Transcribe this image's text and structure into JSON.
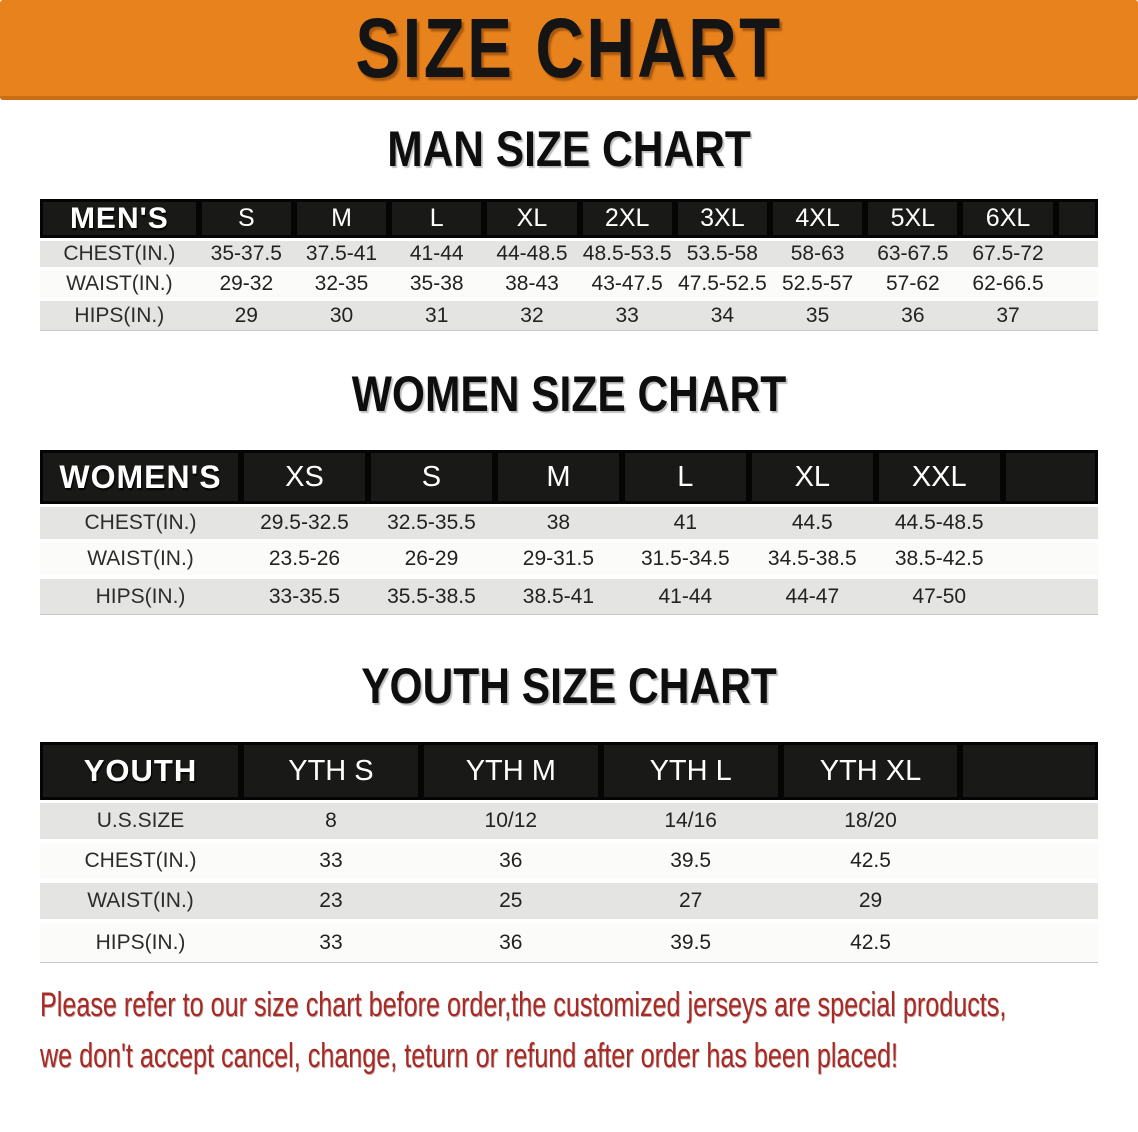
{
  "banner": {
    "title": "SIZE CHART",
    "bg_color": "#E8821C"
  },
  "colors": {
    "header_bar": "#191917",
    "stripe_gray": "#E4E4E2",
    "stripe_white": "#FBFBF9",
    "disclaimer_red": "#A82A24"
  },
  "sections": [
    {
      "title": "MAN SIZE CHART",
      "header_label": "MEN'S",
      "columns": [
        "S",
        "M",
        "L",
        "XL",
        "2XL",
        "3XL",
        "4XL",
        "5XL",
        "6XL"
      ],
      "rows": [
        {
          "label": "CHEST(IN.)",
          "values": [
            "35-37.5",
            "37.5-41",
            "41-44",
            "44-48.5",
            "48.5-53.5",
            "53.5-58",
            "58-63",
            "63-67.5",
            "67.5-72"
          ]
        },
        {
          "label": "WAIST(IN.)",
          "values": [
            "29-32",
            "32-35",
            "35-38",
            "38-43",
            "43-47.5",
            "47.5-52.5",
            "52.5-57",
            "57-62",
            "62-66.5"
          ]
        },
        {
          "label": "HIPS(IN.)",
          "values": [
            "29",
            "30",
            "31",
            "32",
            "33",
            "34",
            "35",
            "36",
            "37"
          ]
        }
      ]
    },
    {
      "title": "WOMEN SIZE CHART",
      "header_label": "WOMEN'S",
      "columns": [
        "XS",
        "S",
        "M",
        "L",
        "XL",
        "XXL"
      ],
      "rows": [
        {
          "label": "CHEST(IN.)",
          "values": [
            "29.5-32.5",
            "32.5-35.5",
            "38",
            "41",
            "44.5",
            "44.5-48.5"
          ]
        },
        {
          "label": "WAIST(IN.)",
          "values": [
            "23.5-26",
            "26-29",
            "29-31.5",
            "31.5-34.5",
            "34.5-38.5",
            "38.5-42.5"
          ]
        },
        {
          "label": "HIPS(IN.)",
          "values": [
            "33-35.5",
            "35.5-38.5",
            "38.5-41",
            "41-44",
            "44-47",
            "47-50"
          ]
        }
      ]
    },
    {
      "title": "YOUTH SIZE CHART",
      "header_label": "YOUTH",
      "columns": [
        "YTH S",
        "YTH M",
        "YTH L",
        "YTH XL"
      ],
      "rows": [
        {
          "label": "U.S.SIZE",
          "values": [
            "8",
            "10/12",
            "14/16",
            "18/20"
          ]
        },
        {
          "label": "CHEST(IN.)",
          "values": [
            "33",
            "36",
            "39.5",
            "42.5"
          ]
        },
        {
          "label": "WAIST(IN.)",
          "values": [
            "23",
            "25",
            "27",
            "29"
          ]
        },
        {
          "label": "HIPS(IN.)",
          "values": [
            "33",
            "36",
            "39.5",
            "42.5"
          ]
        }
      ]
    }
  ],
  "disclaimer": {
    "line1": "Please refer to our size chart before order,the customized jerseys are special products,",
    "line2": "we don't accept cancel, change, teturn or refund after order has been placed!"
  }
}
